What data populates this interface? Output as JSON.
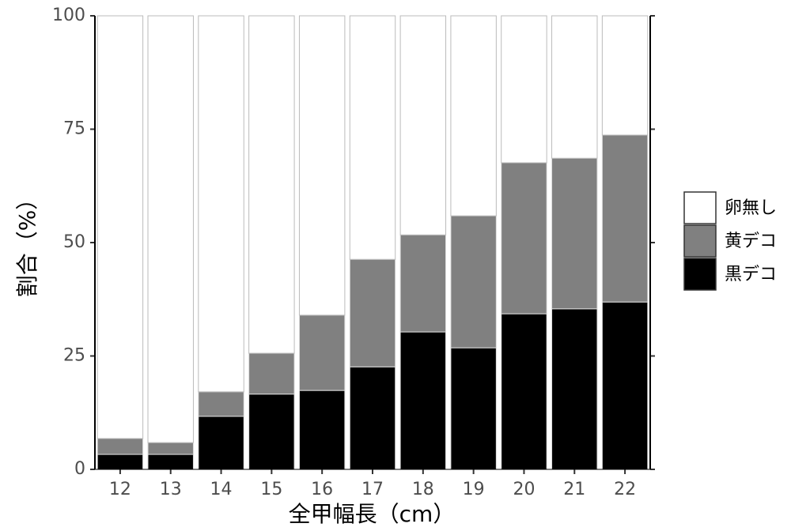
{
  "chart_data": {
    "type": "stacked_bar",
    "categories": [
      "12",
      "13",
      "14",
      "15",
      "16",
      "17",
      "18",
      "19",
      "20",
      "21",
      "22"
    ],
    "series": [
      {
        "name": "黒デコ",
        "color": "#000000",
        "values": [
          3.3,
          3.3,
          11.7,
          16.6,
          17.4,
          22.6,
          30.3,
          26.8,
          34.3,
          35.4,
          36.9
        ]
      },
      {
        "name": "黄デコ",
        "color": "#808080",
        "values": [
          3.5,
          2.6,
          5.4,
          9.0,
          16.6,
          23.7,
          21.4,
          29.1,
          33.3,
          33.2,
          36.8
        ]
      },
      {
        "name": "卵無し",
        "color": "#ffffff",
        "values": [
          93.2,
          94.1,
          82.9,
          74.4,
          66.0,
          53.7,
          48.3,
          44.1,
          32.4,
          31.4,
          26.3
        ]
      }
    ],
    "x_label": "全甲幅長（cm）",
    "y_label": "割合（%）",
    "ylim": [
      0,
      100
    ],
    "yticks": [
      0,
      25,
      50,
      75,
      100
    ]
  }
}
